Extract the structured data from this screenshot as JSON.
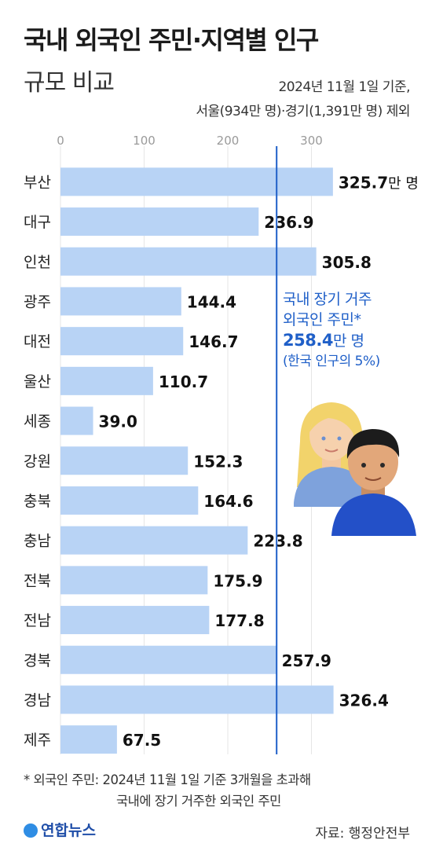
{
  "header": {
    "title_line1": "국내 외국인 주민·지역별 인구",
    "title_line2": "규모 비교",
    "note_line1": "2024년 11월 1일 기준,",
    "note_line2": "서울(934만 명)·경기(1,391만 명) 제외"
  },
  "chart_data": {
    "type": "bar",
    "orientation": "horizontal",
    "categories": [
      "부산",
      "대구",
      "인천",
      "광주",
      "대전",
      "울산",
      "세종",
      "강원",
      "충북",
      "충남",
      "전북",
      "전남",
      "경북",
      "경남",
      "제주"
    ],
    "values": [
      325.7,
      236.9,
      305.8,
      144.4,
      146.7,
      110.7,
      39.0,
      152.3,
      164.6,
      223.8,
      175.9,
      177.8,
      257.9,
      326.4,
      67.5
    ],
    "value_labels": [
      "325.7",
      "236.9",
      "305.8",
      "144.4",
      "146.7",
      "110.7",
      "39.0",
      "152.3",
      "164.6",
      "223.8",
      "175.9",
      "177.8",
      "257.9",
      "326.4",
      "67.5"
    ],
    "first_value_unit": "만 명",
    "x_ticks": [
      0,
      100,
      200,
      300
    ],
    "xlim": [
      0,
      340
    ],
    "grid": true,
    "bar_color": "#b8d3f5",
    "reference_line": {
      "value": 258.4,
      "color": "#1f5fc8"
    }
  },
  "callout": {
    "line1": "국내 장기 거주",
    "line2": "외국인 주민*",
    "value": "258.4",
    "unit": "만 명",
    "line4": "(한국 인구의 5%)"
  },
  "footer": {
    "footnote_line1": "* 외국인 주민: 2024년 11월 1일 기준 3개월을 초과해",
    "footnote_line2": "국내에 장기 거주한 외국인 주민",
    "logo_text": "연합뉴스",
    "source": "자료: 행정안전부"
  },
  "colors": {
    "accent": "#1f5fc8",
    "text": "#1b1b1b"
  }
}
